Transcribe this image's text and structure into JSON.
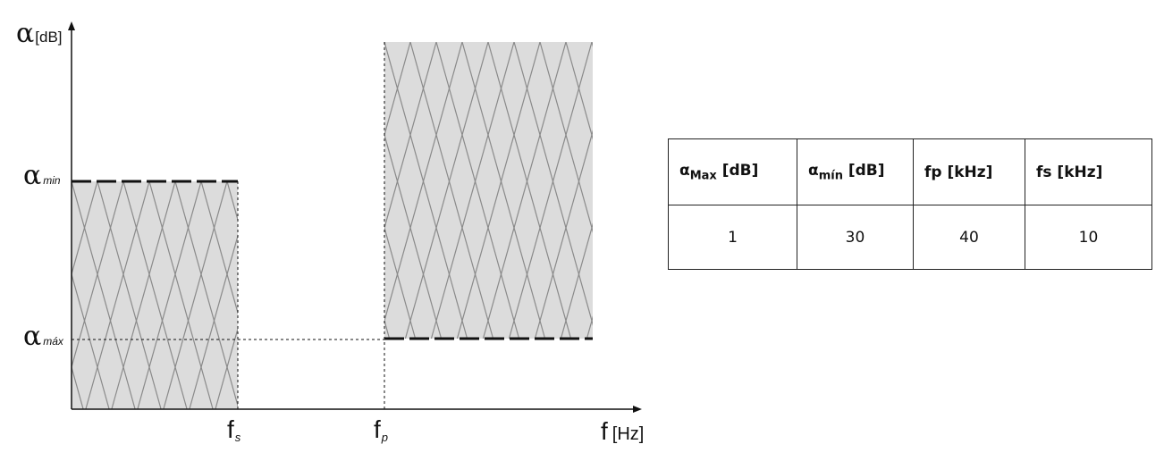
{
  "diagram": {
    "y_axis": {
      "symbol": "α",
      "unit": "[dB]"
    },
    "x_axis": {
      "symbol": "f",
      "unit": "[Hz]"
    },
    "levels": [
      {
        "symbol": "α",
        "sub": "min"
      },
      {
        "symbol": "α",
        "sub": "máx"
      }
    ],
    "freqs": [
      {
        "symbol": "f",
        "sub": "s"
      },
      {
        "symbol": "f",
        "sub": "p"
      }
    ],
    "colors": {
      "region_fill": "#dcdcdc",
      "hatch": "#8a8a8a",
      "axis": "#111111"
    }
  },
  "table": {
    "headers": [
      {
        "main": "α",
        "sub": "Max",
        "unit": " [dB]"
      },
      {
        "main": "α",
        "sub": "mín",
        "unit": " [dB]"
      },
      {
        "main": "fp [kHz]",
        "sub": "",
        "unit": ""
      },
      {
        "main": "fs [kHz]",
        "sub": "",
        "unit": ""
      }
    ],
    "rows": [
      [
        "1",
        "30",
        "40",
        "10"
      ]
    ]
  }
}
